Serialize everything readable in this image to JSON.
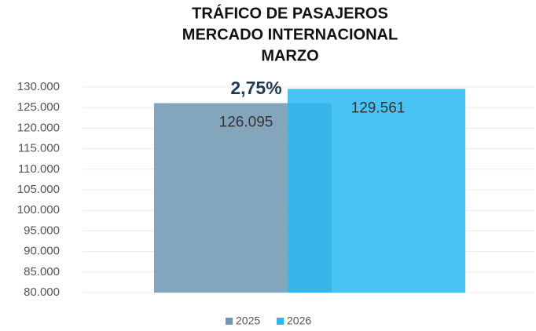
{
  "chart_data": {
    "type": "bar",
    "title": [
      "TRÁFICO DE PASAJEROS",
      "MERCADO INTERNACIONAL",
      "MARZO"
    ],
    "annotation": "2,75%",
    "categories": [
      null
    ],
    "series": [
      {
        "name": "2025",
        "color": "#6f97b2",
        "values": [
          126095
        ],
        "value_labels": [
          "126.095"
        ]
      },
      {
        "name": "2026",
        "color": "#29b9f2",
        "values": [
          129561
        ],
        "value_labels": [
          "129.561"
        ]
      }
    ],
    "ylim": [
      80000,
      130000
    ],
    "yticks": [
      {
        "value": 80000,
        "label": "80.000"
      },
      {
        "value": 85000,
        "label": "85.000"
      },
      {
        "value": 90000,
        "label": "90.000"
      },
      {
        "value": 95000,
        "label": "95.000"
      },
      {
        "value": 100000,
        "label": "100.000"
      },
      {
        "value": 105000,
        "label": "105.000"
      },
      {
        "value": 110000,
        "label": "110.000"
      },
      {
        "value": 115000,
        "label": "115.000"
      },
      {
        "value": 120000,
        "label": "120.000"
      },
      {
        "value": 125000,
        "label": "125.000"
      },
      {
        "value": 130000,
        "label": "130.000"
      }
    ],
    "grid": true,
    "legend": "bottom"
  }
}
